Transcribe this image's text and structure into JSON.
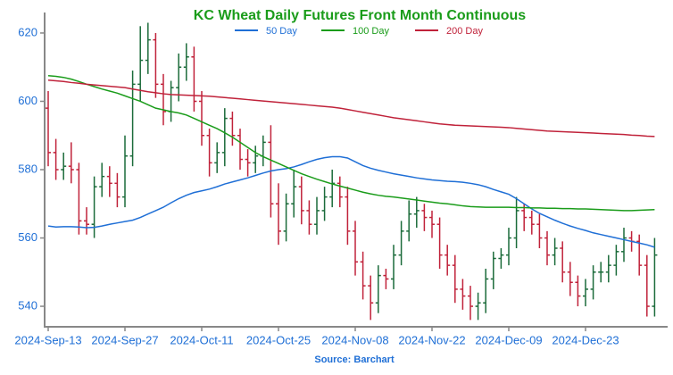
{
  "chart_data": {
    "type": "ohlc",
    "title": "KC Wheat Daily Futures Front Month Continuous",
    "source": "Source: Barchart",
    "categories": [
      "2024-Sep-13",
      null,
      null,
      null,
      null,
      null,
      null,
      null,
      null,
      null,
      "2024-Sep-27",
      null,
      null,
      null,
      null,
      null,
      null,
      null,
      null,
      null,
      "2024-Oct-11",
      null,
      null,
      null,
      null,
      null,
      null,
      null,
      null,
      null,
      "2024-Oct-25",
      null,
      null,
      null,
      null,
      null,
      null,
      null,
      null,
      null,
      "2024-Nov-08",
      null,
      null,
      null,
      null,
      null,
      null,
      null,
      null,
      null,
      "2024-Nov-22",
      null,
      null,
      null,
      null,
      null,
      null,
      null,
      null,
      null,
      "2024-Dec-09",
      null,
      null,
      null,
      null,
      null,
      null,
      null,
      null,
      null,
      "2024-Dec-23",
      null,
      null,
      null,
      null,
      null,
      null,
      null,
      null,
      null
    ],
    "open": [
      598,
      585,
      580,
      581,
      580,
      565,
      564,
      575,
      578,
      576,
      572,
      584,
      605,
      612,
      618,
      605,
      597,
      604,
      610,
      613,
      600,
      590,
      582,
      585,
      595,
      590,
      583,
      582,
      584,
      588,
      570,
      562,
      570,
      575,
      568,
      564,
      568,
      572,
      576,
      572,
      562,
      553,
      546,
      541,
      549,
      548,
      555,
      562,
      567,
      568,
      566,
      564,
      555,
      552,
      545,
      543,
      540,
      541,
      548,
      554,
      555,
      560,
      568,
      566,
      564,
      560,
      555,
      557,
      550,
      547,
      543,
      545,
      550,
      550,
      552,
      556,
      560,
      559,
      552,
      540
    ],
    "high": [
      603,
      589,
      585,
      588,
      582,
      569,
      578,
      582,
      581,
      579,
      590,
      609,
      622,
      623,
      620,
      608,
      606,
      614,
      617,
      616,
      603,
      592,
      588,
      598,
      597,
      592,
      586,
      587,
      590,
      593,
      576,
      573,
      580,
      578,
      571,
      572,
      575,
      580,
      578,
      575,
      565,
      556,
      549,
      552,
      551,
      558,
      565,
      571,
      572,
      570,
      568,
      566,
      558,
      555,
      548,
      546,
      544,
      551,
      556,
      557,
      563,
      572,
      570,
      568,
      567,
      562,
      560,
      559,
      553,
      549,
      548,
      552,
      553,
      555,
      558,
      563,
      562,
      561,
      555,
      560
    ],
    "low": [
      581,
      577,
      577,
      576,
      561,
      561,
      560,
      572,
      572,
      569,
      569,
      581,
      600,
      608,
      601,
      593,
      594,
      600,
      606,
      597,
      587,
      578,
      579,
      581,
      587,
      580,
      578,
      579,
      581,
      566,
      558,
      559,
      566,
      564,
      561,
      561,
      565,
      569,
      569,
      558,
      549,
      542,
      536,
      538,
      545,
      545,
      552,
      559,
      563,
      562,
      560,
      551,
      549,
      541,
      539,
      536,
      536,
      538,
      545,
      551,
      552,
      557,
      562,
      561,
      557,
      552,
      552,
      547,
      543,
      540,
      540,
      542,
      547,
      547,
      549,
      553,
      556,
      549,
      537,
      537
    ],
    "close": [
      585,
      580,
      581,
      580,
      565,
      564,
      575,
      578,
      576,
      572,
      584,
      605,
      612,
      618,
      605,
      597,
      604,
      610,
      613,
      600,
      590,
      582,
      585,
      595,
      590,
      583,
      582,
      584,
      588,
      570,
      562,
      570,
      575,
      568,
      564,
      568,
      572,
      576,
      572,
      562,
      553,
      546,
      541,
      549,
      548,
      555,
      562,
      567,
      568,
      566,
      564,
      555,
      552,
      545,
      543,
      540,
      541,
      548,
      554,
      555,
      560,
      568,
      566,
      564,
      560,
      555,
      557,
      550,
      547,
      543,
      545,
      550,
      550,
      552,
      556,
      560,
      559,
      552,
      540,
      555
    ],
    "up_color": "#1b6b3a",
    "down_color": "#c0223a",
    "series": [
      {
        "name": "50 Day",
        "color": "#1f6fd6",
        "values": [
          563.5,
          563.2,
          563.3,
          563.3,
          563.2,
          563.0,
          563.1,
          563.5,
          564.0,
          564.4,
          564.8,
          565.2,
          566.0,
          567.0,
          568.0,
          569.0,
          570.3,
          571.5,
          572.5,
          573.3,
          573.8,
          574.3,
          575.0,
          575.8,
          576.4,
          577.0,
          577.6,
          578.3,
          579.0,
          579.6,
          580.0,
          580.3,
          580.8,
          581.5,
          582.3,
          583.0,
          583.5,
          583.8,
          583.8,
          583.4,
          582.3,
          581.2,
          580.4,
          579.8,
          579.3,
          578.8,
          578.4,
          578.0,
          577.6,
          577.3,
          577.0,
          576.8,
          576.6,
          576.5,
          576.3,
          576.0,
          575.6,
          575.0,
          574.2,
          573.5,
          572.8,
          571.5,
          570.0,
          568.5,
          567.2,
          566.2,
          565.2,
          564.3,
          563.5,
          562.8,
          562.2,
          561.5,
          561.0,
          560.5,
          560.0,
          559.5,
          559.0,
          558.5,
          558.0,
          557.3
        ]
      },
      {
        "name": "100 Day",
        "color": "#1a9c1a",
        "values": [
          607.5,
          607.3,
          607.0,
          606.5,
          605.8,
          605.0,
          604.3,
          603.6,
          603.0,
          602.4,
          601.6,
          600.8,
          600.0,
          599.0,
          598.0,
          597.5,
          597.0,
          596.6,
          596.0,
          595.0,
          594.0,
          593.0,
          592.0,
          590.8,
          589.5,
          588.0,
          586.5,
          585.0,
          583.8,
          582.8,
          581.8,
          580.8,
          579.8,
          578.8,
          578.0,
          577.2,
          576.5,
          575.8,
          575.2,
          574.6,
          574.0,
          573.4,
          572.9,
          572.5,
          572.2,
          572.0,
          571.7,
          571.4,
          571.1,
          570.8,
          570.5,
          570.2,
          570.0,
          569.7,
          569.4,
          569.2,
          569.1,
          569.0,
          569.0,
          569.0,
          569.0,
          568.9,
          568.9,
          568.8,
          568.8,
          568.7,
          568.7,
          568.6,
          568.6,
          568.5,
          568.5,
          568.4,
          568.3,
          568.2,
          568.1,
          568.0,
          568.0,
          568.1,
          568.2,
          568.3
        ]
      },
      {
        "name": "200 Day",
        "color": "#c0223a",
        "values": [
          606.2,
          606.0,
          605.8,
          605.5,
          605.3,
          605.0,
          604.8,
          604.6,
          604.4,
          604.2,
          604.0,
          603.6,
          603.2,
          602.8,
          602.5,
          602.2,
          602.0,
          601.9,
          601.8,
          601.7,
          601.6,
          601.5,
          601.3,
          601.1,
          600.9,
          600.7,
          600.5,
          600.3,
          600.1,
          599.9,
          599.7,
          599.5,
          599.3,
          599.1,
          598.9,
          598.7,
          598.5,
          598.3,
          598.0,
          597.6,
          597.2,
          596.8,
          596.4,
          596.0,
          595.6,
          595.2,
          594.9,
          594.6,
          594.3,
          594.0,
          593.7,
          593.4,
          593.2,
          593.0,
          592.9,
          592.8,
          592.7,
          592.6,
          592.5,
          592.4,
          592.3,
          592.1,
          591.9,
          591.7,
          591.5,
          591.3,
          591.2,
          591.1,
          591.0,
          590.9,
          590.8,
          590.7,
          590.6,
          590.5,
          590.4,
          590.3,
          590.1,
          590.0,
          589.8,
          589.7
        ]
      }
    ],
    "ylim": [
      534,
      626
    ],
    "yticks": [
      540,
      560,
      580,
      600,
      620
    ]
  }
}
